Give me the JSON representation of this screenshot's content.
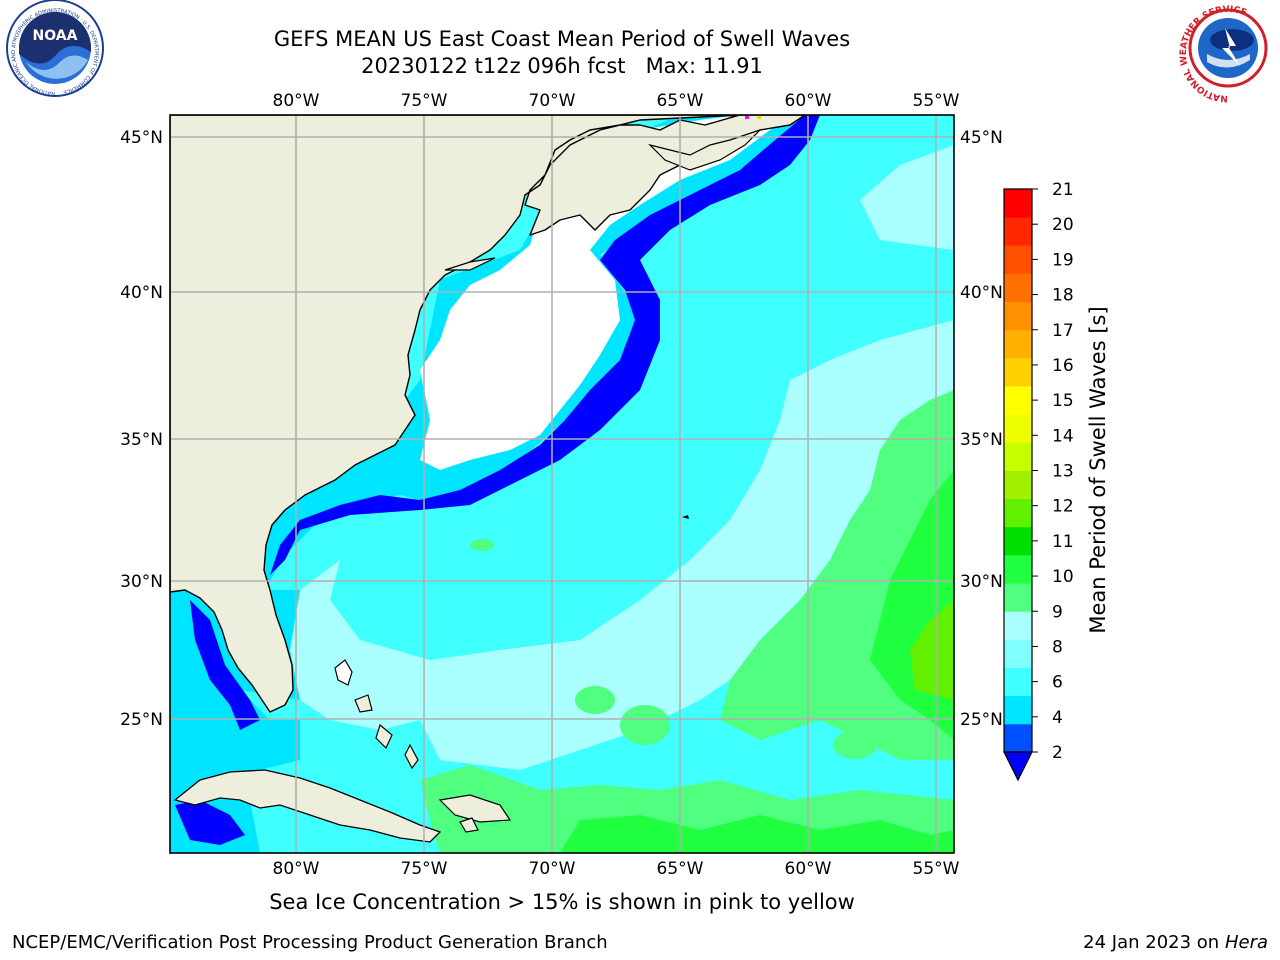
{
  "header": {
    "title": "GEFS MEAN US East Coast Mean Period of Swell Waves",
    "subtitle_run": "20230122 t12z 096h fcst",
    "subtitle_max": "Max: 11.91"
  },
  "logos": {
    "left": {
      "icon": "noaa-logo",
      "text": "NOAA",
      "ring_text": "NATIONAL OCEANIC AND ATMOSPHERIC ADMINISTRATION · U.S. DEPARTMENT OF COMMERCE"
    },
    "right": {
      "icon": "nws-logo",
      "ring_text": "NATIONAL WEATHER SERVICE"
    }
  },
  "map": {
    "lon_labels": [
      "80°W",
      "75°W",
      "70°W",
      "65°W",
      "60°W",
      "55°W"
    ],
    "lat_labels": [
      "45°N",
      "40°N",
      "35°N",
      "30°N",
      "25°N"
    ],
    "colors": {
      "land": "#eeeedc",
      "coast": "#000000",
      "grid": "#b0b0b0"
    }
  },
  "colorbar": {
    "label": "Mean Period of Swell Waves [s]",
    "ticks": [
      "21",
      "20",
      "19",
      "18",
      "17",
      "16",
      "15",
      "14",
      "13",
      "12",
      "11",
      "10",
      "9",
      "8",
      "6",
      "4",
      "2"
    ],
    "colors_low_to_high": [
      "#0050ff",
      "#00e5ff",
      "#40ffff",
      "#80ffff",
      "#aaffff",
      "#50ff80",
      "#20ff40",
      "#00e000",
      "#60f000",
      "#a0f000",
      "#c8ff00",
      "#f0ff00",
      "#ffff00",
      "#ffd000",
      "#ffb000",
      "#ff9000",
      "#ff7000",
      "#ff5000",
      "#ff2800",
      "#ff0000"
    ],
    "underflow_color": "#0000ff"
  },
  "footer": {
    "sea_ice_note": "Sea Ice Concentration > 15% is shown in pink to yellow",
    "credit": "NCEP/EMC/Verification Post Processing Product Generation Branch",
    "date": "24 Jan 2023 on",
    "host": "Hera"
  }
}
